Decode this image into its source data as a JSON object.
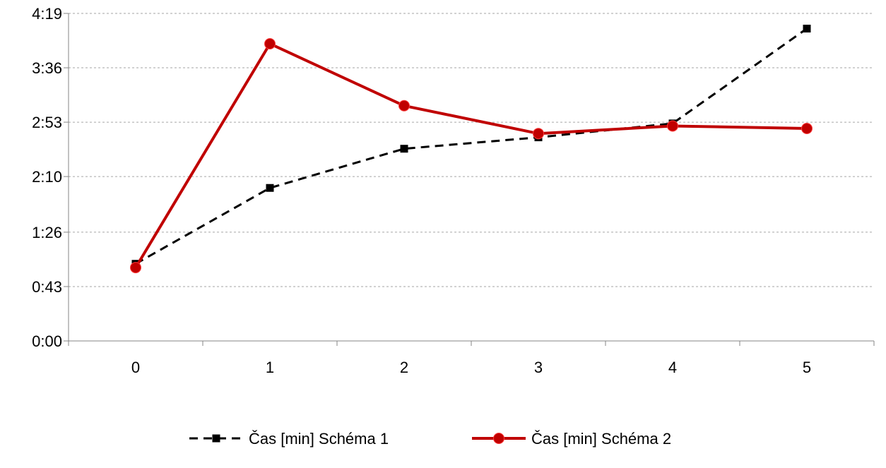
{
  "chart_data": {
    "type": "line",
    "title": "",
    "xlabel": "",
    "ylabel": "",
    "categories": [
      "0",
      "1",
      "2",
      "3",
      "4",
      "5"
    ],
    "y_unit": "min:sec",
    "y_ticks": [
      "0:00",
      "0:43",
      "1:26",
      "2:10",
      "2:53",
      "3:36",
      "4:19"
    ],
    "y_tick_seconds": [
      0,
      43,
      86,
      130,
      173,
      216,
      259
    ],
    "ylim_seconds": [
      0,
      259
    ],
    "grid": "horizontal-dashed",
    "legend_position": "bottom",
    "series": [
      {
        "name": "Čas [min] Schéma 1",
        "values_seconds": [
          61,
          121,
          152,
          161,
          172,
          247
        ],
        "color": "#000000",
        "line_style": "dashed",
        "marker": "square"
      },
      {
        "name": "Čas [min] Schéma 2",
        "values_seconds": [
          58,
          235,
          186,
          164,
          170,
          168
        ],
        "color": "#c00000",
        "line_style": "solid",
        "marker": "circle"
      }
    ]
  }
}
